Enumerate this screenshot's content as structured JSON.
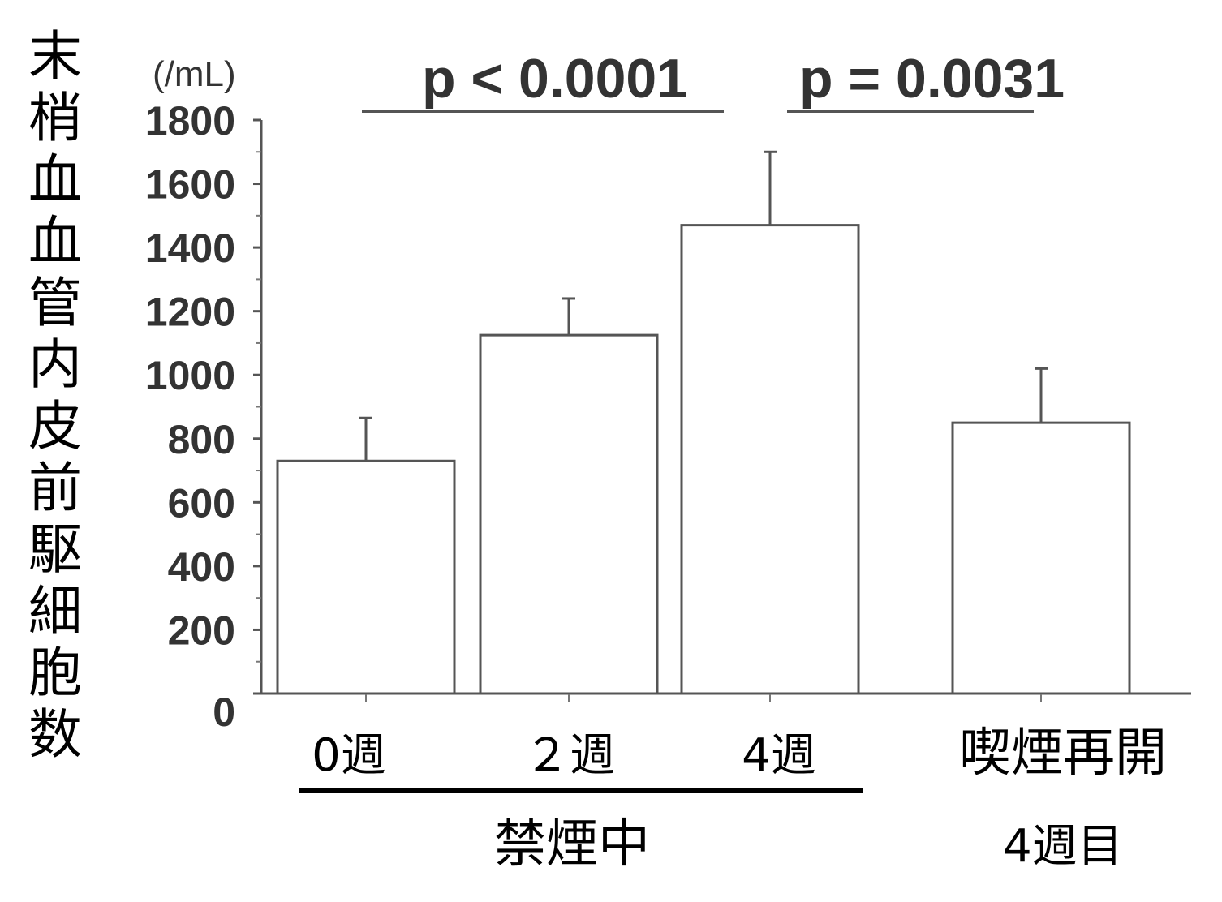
{
  "chart_data": {
    "type": "bar",
    "ylabel": "末梢血血管内皮前駆細胞数",
    "unit": "(/mL)",
    "ylim": [
      0,
      1800
    ],
    "yticks": [
      0,
      200,
      400,
      600,
      800,
      1000,
      1200,
      1400,
      1600,
      1800
    ],
    "categories": [
      "0週",
      "２週",
      "4週",
      "喫煙再開"
    ],
    "category_sublabels": [
      "",
      "",
      "",
      "4週目"
    ],
    "values": [
      730,
      1125,
      1470,
      850
    ],
    "error_upper": [
      865,
      1240,
      1700,
      1020
    ],
    "group_label": "禁煙中",
    "annotations": [
      {
        "text": "p < 0.0001"
      },
      {
        "text": "p = 0.0031"
      }
    ]
  }
}
